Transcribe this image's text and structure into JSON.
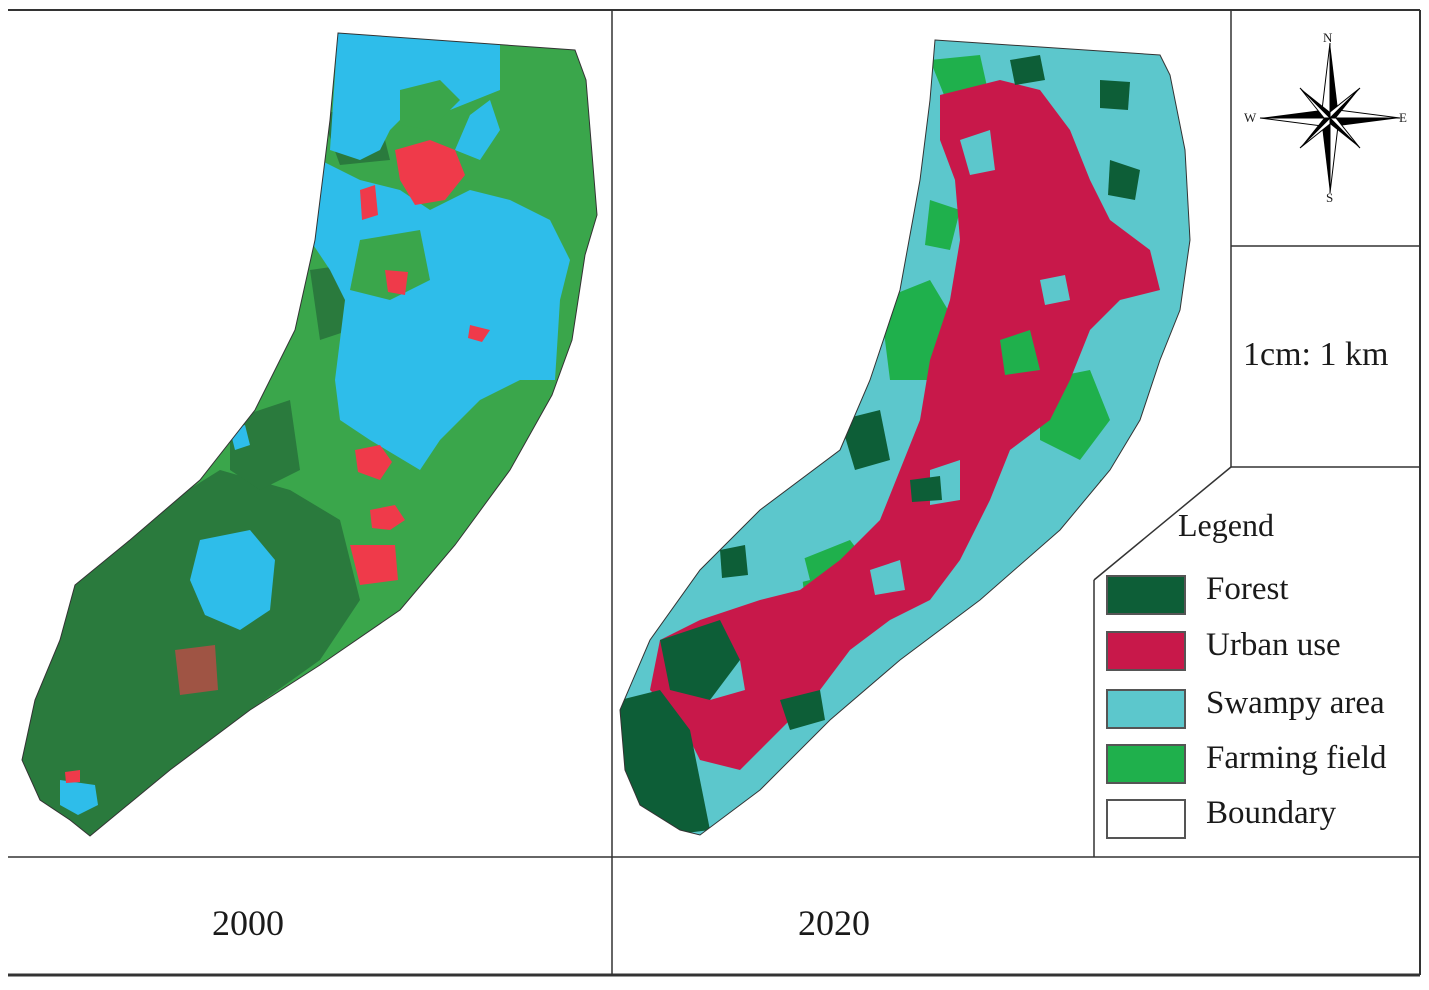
{
  "panels": [
    {
      "year": "2000"
    },
    {
      "year": "2020"
    }
  ],
  "compass": {
    "n": "N",
    "s": "S",
    "e": "E",
    "w": "W"
  },
  "scale_text": "1cm: 1 km",
  "legend": {
    "title": "Legend",
    "items": [
      {
        "label": "Forest",
        "color": "#0d5e37"
      },
      {
        "label": "Urban use",
        "color": "#c8184a"
      },
      {
        "label": "Swampy area",
        "color": "#5cc7cc"
      },
      {
        "label": "Farming field",
        "color": "#1fb04c"
      },
      {
        "label": "Boundary",
        "color": "#ffffff"
      }
    ]
  },
  "map_colors_2000": {
    "forest_dark": "#2a7a3d",
    "farming": "#3aa64b",
    "water": "#2ebdea",
    "urban": "#ef3a4a"
  }
}
